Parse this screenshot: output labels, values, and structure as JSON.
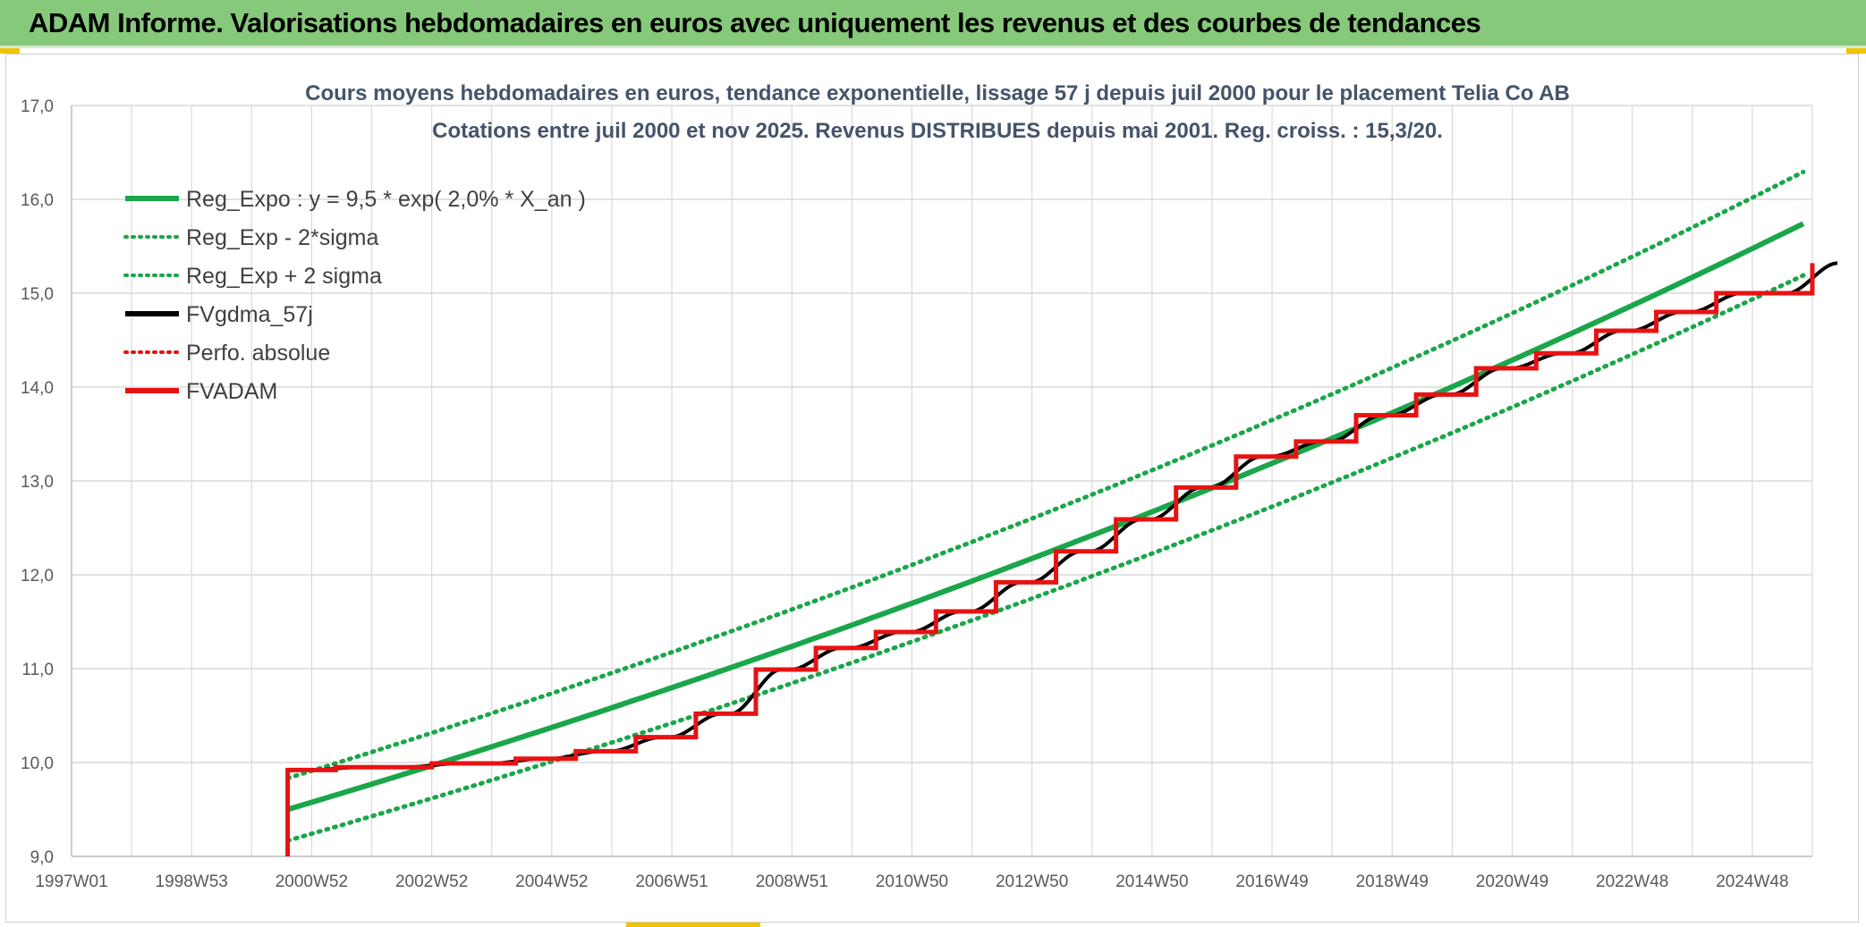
{
  "banner": {
    "title": "ADAM Informe. Valorisations hebdomadaires en euros avec uniquement les revenus et des courbes de tendances"
  },
  "colors": {
    "banner_bg": "#86c97a",
    "regression": "#1aa64a",
    "band": "#1aa64a",
    "fv_gdma": "#000000",
    "perfo": "#e81212",
    "fvadam": "#e81212",
    "title": "#44546a"
  },
  "chart_data": {
    "type": "line",
    "title": "Cours moyens hebdomadaires en euros, tendance exponentielle, lissage 57 j depuis juil 2000 pour le placement Telia Co AB",
    "subtitle": "Cotations entre juil 2000  et nov 2025. Revenus DISTRIBUES depuis mai 2001. Reg. croiss. : 15,3/20.",
    "xlabel": "",
    "ylabel": "",
    "ylim": [
      9.0,
      17.0
    ],
    "xlim": [
      1997.0,
      2026.0
    ],
    "yticks": [
      "9,0",
      "10,0",
      "11,0",
      "12,0",
      "13,0",
      "14,0",
      "15,0",
      "16,0",
      "17,0"
    ],
    "xticks": [
      {
        "label": "1997W01",
        "x": 1997.0
      },
      {
        "label": "1998W53",
        "x": 1999.0
      },
      {
        "label": "2000W52",
        "x": 2001.0
      },
      {
        "label": "2002W52",
        "x": 2003.0
      },
      {
        "label": "2004W52",
        "x": 2005.0
      },
      {
        "label": "2006W51",
        "x": 2007.0
      },
      {
        "label": "2008W51",
        "x": 2009.0
      },
      {
        "label": "2010W50",
        "x": 2011.0
      },
      {
        "label": "2012W50",
        "x": 2013.0
      },
      {
        "label": "2014W50",
        "x": 2015.0
      },
      {
        "label": "2016W49",
        "x": 2017.0
      },
      {
        "label": "2018W49",
        "x": 2019.0
      },
      {
        "label": "2020W49",
        "x": 2021.0
      },
      {
        "label": "2022W48",
        "x": 2023.0
      },
      {
        "label": "2024W48",
        "x": 2025.0
      }
    ],
    "grid": true,
    "legend_position": "top-left",
    "regression": {
      "a": 9.5,
      "rate": 0.02,
      "x0": 2000.6
    },
    "sigma_factor": 0.035,
    "series": [
      {
        "name": "Reg_Expo : y = 9,5 * exp( 2,0% *  X_an )",
        "style": "solid",
        "color": "#1aa64a",
        "x": [
          2000.6,
          2026.0
        ],
        "y": [
          9.53,
          15.84
        ]
      },
      {
        "name": "Reg_Exp - 2*sigma",
        "style": "dotted",
        "color": "#1aa64a",
        "x": [
          2000.6,
          2026.0
        ],
        "y": [
          9.2,
          15.29
        ]
      },
      {
        "name": "Reg_Exp + 2 sigma",
        "style": "dotted",
        "color": "#1aa64a",
        "x": [
          2000.6,
          2026.0
        ],
        "y": [
          9.86,
          16.42
        ]
      },
      {
        "name": "FVgdma_57j",
        "style": "solid",
        "color": "#000000",
        "x": [
          2000.6,
          2001.4,
          2003.0,
          2004.4,
          2005.4,
          2006.4,
          2007.4,
          2008.4,
          2009.4,
          2010.4,
          2011.4,
          2012.4,
          2013.4,
          2014.4,
          2015.4,
          2016.4,
          2017.4,
          2018.4,
          2019.4,
          2020.4,
          2021.4,
          2022.4,
          2023.4,
          2024.4,
          2026.0
        ],
        "y": [
          9.92,
          9.95,
          9.99,
          10.04,
          10.12,
          10.27,
          10.52,
          10.99,
          11.22,
          11.39,
          11.61,
          11.92,
          12.25,
          12.59,
          12.93,
          13.26,
          13.42,
          13.7,
          13.92,
          14.2,
          14.36,
          14.6,
          14.8,
          15.0,
          15.32
        ]
      },
      {
        "name": "Perfo. absolue",
        "style": "dotted",
        "color": "#e81212",
        "x": [],
        "y": []
      },
      {
        "name": "FVADAM",
        "style": "solid",
        "color": "#e81212",
        "x": [
          2000.6,
          2000.6,
          2001.4,
          2003.0,
          2004.4,
          2005.4,
          2006.4,
          2007.4,
          2008.4,
          2009.4,
          2010.4,
          2011.4,
          2012.4,
          2013.4,
          2014.4,
          2015.4,
          2016.4,
          2017.4,
          2018.4,
          2019.4,
          2020.4,
          2021.4,
          2022.4,
          2023.4,
          2024.4,
          2026.0
        ],
        "y": [
          9.0,
          9.92,
          9.95,
          9.99,
          10.04,
          10.12,
          10.27,
          10.52,
          10.99,
          11.22,
          11.39,
          11.61,
          11.92,
          12.25,
          12.59,
          12.93,
          13.26,
          13.42,
          13.7,
          13.92,
          14.2,
          14.36,
          14.6,
          14.8,
          15.0,
          15.32
        ]
      }
    ]
  }
}
